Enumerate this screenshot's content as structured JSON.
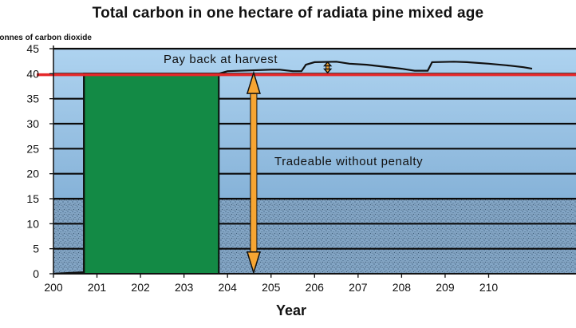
{
  "chart_data": {
    "type": "bar",
    "title": "Total carbon in one hectare of radiata pine mixed age",
    "ylabel": "Tonnes of carbon dioxide",
    "xlabel": "Year",
    "ylim": [
      0,
      45
    ],
    "yticks": [
      0,
      5,
      10,
      15,
      20,
      25,
      30,
      35,
      40,
      45
    ],
    "xlim": [
      2000,
      2110
    ],
    "xticks": [
      {
        "value": 2000,
        "label": "200"
      },
      {
        "value": 2010,
        "label": "201"
      },
      {
        "value": 2020,
        "label": "202"
      },
      {
        "value": 2030,
        "label": "203"
      },
      {
        "value": 2040,
        "label": "204"
      },
      {
        "value": 2050,
        "label": "205"
      },
      {
        "value": 2060,
        "label": "206"
      },
      {
        "value": 2070,
        "label": "207"
      },
      {
        "value": 2080,
        "label": "208"
      },
      {
        "value": 2090,
        "label": "209"
      },
      {
        "value": 2100,
        "label": "210"
      }
    ],
    "bar": {
      "x_start": 2007,
      "x_end": 2038,
      "value": 40,
      "color": "#138a45"
    },
    "carbon_curve": [
      [
        2000,
        0
      ],
      [
        2007,
        0.3
      ],
      [
        2007,
        40
      ],
      [
        2038,
        40
      ],
      [
        2040,
        40.5
      ],
      [
        2050,
        40.8
      ],
      [
        2052,
        40.8
      ],
      [
        2055,
        40.5
      ],
      [
        2057,
        40.5
      ],
      [
        2058,
        41.8
      ],
      [
        2060,
        42.3
      ],
      [
        2065,
        42.4
      ],
      [
        2068,
        42
      ],
      [
        2072,
        41.8
      ],
      [
        2076,
        41.4
      ],
      [
        2080,
        41
      ],
      [
        2083,
        40.6
      ],
      [
        2086,
        40.6
      ],
      [
        2087,
        42.3
      ],
      [
        2092,
        42.4
      ],
      [
        2095,
        42.3
      ],
      [
        2100,
        42
      ],
      [
        2105,
        41.6
      ],
      [
        2108,
        41.3
      ],
      [
        2110,
        41.0
      ]
    ],
    "reference_line": {
      "value": 39.8,
      "color": "#e5282a"
    },
    "annotations": [
      {
        "text": "Pay back at harvest",
        "x": 2057,
        "y": 42.8
      },
      {
        "text": "Tradeable without penalty",
        "x": 2064,
        "y": 23
      }
    ],
    "arrows": [
      {
        "x": 2046,
        "from": 40.2,
        "to": 0.2,
        "color": "#f7a532"
      },
      {
        "x": 2063,
        "from": 42.3,
        "to": 40.2,
        "color": "#f7a532"
      }
    ],
    "grid": true,
    "legend": "none"
  }
}
